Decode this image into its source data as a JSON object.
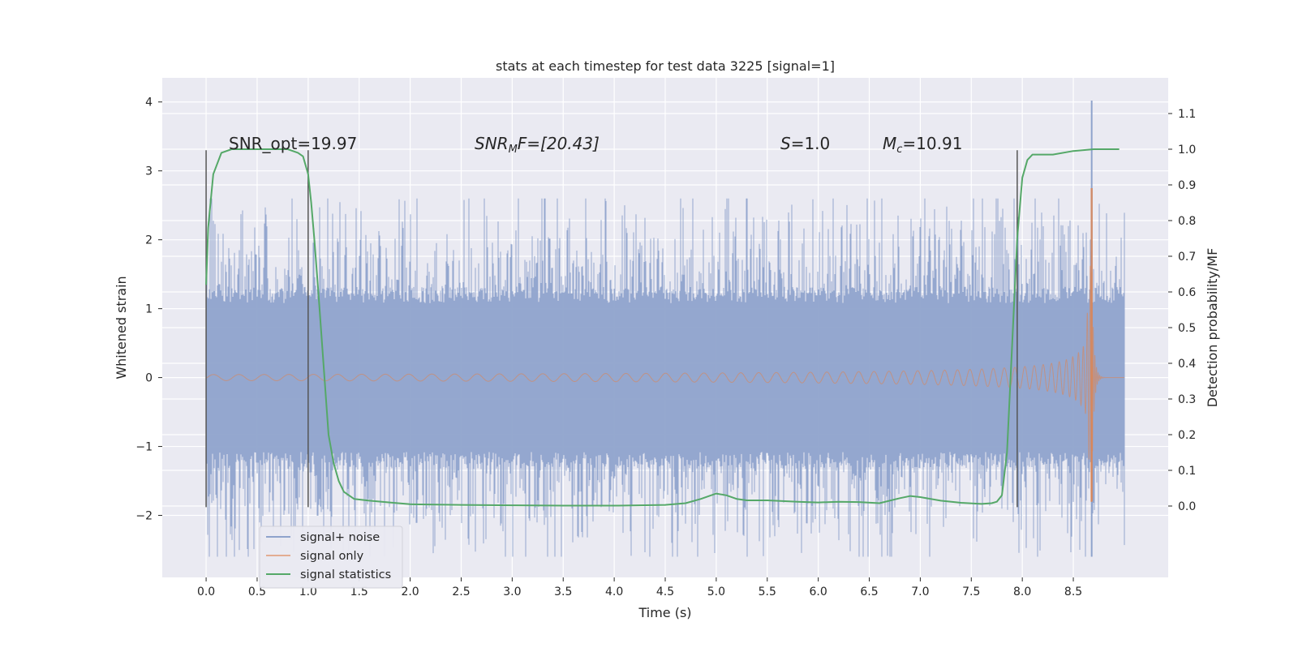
{
  "chart_data": {
    "type": "line",
    "title": "stats at each timestep for test data 3225 [signal=1]",
    "xlabel": "Time (s)",
    "ylabel_left": "Whitened strain",
    "ylabel_right": "Detection probability/MF",
    "xlim": [
      -0.43,
      9.43
    ],
    "ylim_left": [
      -2.9,
      4.35
    ],
    "ylim_right": [
      -0.2,
      1.2
    ],
    "x_ticks": [
      0.0,
      0.5,
      1.0,
      1.5,
      2.0,
      2.5,
      3.0,
      3.5,
      4.0,
      4.5,
      5.0,
      5.5,
      6.0,
      6.5,
      7.0,
      7.5,
      8.0,
      8.5
    ],
    "x_tick_labels": [
      "0.0",
      "0.5",
      "1.0",
      "1.5",
      "2.0",
      "2.5",
      "3.0",
      "3.5",
      "4.0",
      "4.5",
      "5.0",
      "5.5",
      "6.0",
      "6.5",
      "7.0",
      "7.5",
      "8.0",
      "8.5"
    ],
    "y_left_ticks": [
      -2,
      -1,
      0,
      1,
      2,
      3,
      4
    ],
    "y_left_tick_labels": [
      "−2",
      "−1",
      "0",
      "1",
      "2",
      "3",
      "4"
    ],
    "y_right_ticks": [
      0.0,
      0.1,
      0.2,
      0.3,
      0.4,
      0.5,
      0.6,
      0.7,
      0.8,
      0.9,
      1.0,
      1.1
    ],
    "y_right_tick_labels": [
      "0.0",
      "0.1",
      "0.2",
      "0.3",
      "0.4",
      "0.5",
      "0.6",
      "0.7",
      "0.8",
      "0.9",
      "1.0",
      "1.1"
    ],
    "grid": true,
    "series": [
      {
        "name": "signal+ noise",
        "axis": "left",
        "color": "#8fa3cc",
        "t_range": [
          0.0,
          9.0
        ],
        "band_abs": 1.2,
        "peaks_pos_max": 2.6,
        "peaks_neg_min": -2.6,
        "spike": {
          "t": 8.68,
          "value": 4.02
        }
      },
      {
        "name": "signal only",
        "axis": "left",
        "color": "#dd8452",
        "t_range": [
          0.0,
          9.0
        ],
        "merger_time": 8.68,
        "peak_amplitude": 2.75,
        "min_amplitude": -1.8
      },
      {
        "name": "signal statistics",
        "axis": "right",
        "color": "#55a868",
        "x": [
          0.0,
          0.02,
          0.07,
          0.15,
          0.25,
          0.4,
          0.6,
          0.8,
          0.9,
          0.95,
          1.0,
          1.03,
          1.06,
          1.1,
          1.15,
          1.2,
          1.25,
          1.3,
          1.35,
          1.45,
          1.6,
          1.8,
          2.0,
          2.5,
          3.0,
          3.5,
          4.0,
          4.5,
          4.7,
          4.85,
          5.0,
          5.1,
          5.2,
          5.3,
          5.5,
          5.8,
          6.0,
          6.2,
          6.4,
          6.6,
          6.8,
          6.9,
          7.0,
          7.2,
          7.4,
          7.6,
          7.7,
          7.75,
          7.8,
          7.85,
          7.9,
          7.95,
          8.0,
          8.05,
          8.1,
          8.2,
          8.3,
          8.5,
          8.7,
          8.8,
          8.9,
          8.95
        ],
        "y": [
          0.62,
          0.78,
          0.93,
          0.99,
          1.0,
          1.0,
          1.0,
          1.0,
          0.99,
          0.98,
          0.93,
          0.85,
          0.75,
          0.6,
          0.4,
          0.2,
          0.12,
          0.07,
          0.04,
          0.02,
          0.015,
          0.01,
          0.005,
          0.003,
          0.002,
          0.001,
          0.001,
          0.003,
          0.008,
          0.02,
          0.035,
          0.03,
          0.02,
          0.016,
          0.016,
          0.012,
          0.01,
          0.012,
          0.011,
          0.008,
          0.022,
          0.028,
          0.025,
          0.015,
          0.009,
          0.006,
          0.008,
          0.012,
          0.03,
          0.15,
          0.45,
          0.75,
          0.92,
          0.97,
          0.985,
          0.985,
          0.985,
          0.995,
          1.0,
          1.0,
          1.0,
          1.0
        ]
      }
    ],
    "vertical_lines": [
      0.0,
      1.0,
      7.95
    ],
    "vertical_line_range_left": [
      -1.88,
      3.3
    ],
    "annotations": [
      {
        "text": "SNR_opt=19.97",
        "x": 0.2,
        "y": 3.3
      },
      {
        "text_base": "SNR",
        "text_sub": "M",
        "text_rest": "F=[20.43]",
        "x": 2.6,
        "y": 3.3
      },
      {
        "text_base": "S",
        "text_rest": "=1.0",
        "x": 5.6,
        "y": 3.3
      },
      {
        "text_base": "M",
        "text_sub": "c",
        "text_rest": "=10.91",
        "x": 6.6,
        "y": 3.3
      }
    ],
    "legend": {
      "position": "lower-left",
      "entries": [
        "signal+ noise",
        "signal only",
        "signal statistics"
      ]
    }
  },
  "colors": {
    "axes_bg": "#eaeaf2",
    "grid": "#ffffff",
    "noise": "#8fa3cc",
    "signal": "#dd8452",
    "stats": "#55a868",
    "vline": "#555555"
  }
}
